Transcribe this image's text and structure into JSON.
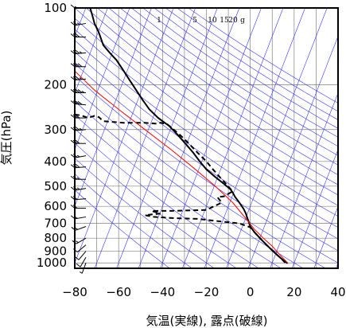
{
  "chart_data": {
    "type": "line",
    "title": "",
    "xlabel": "気温(実線), 露点(破線)",
    "ylabel": "気圧(hPa)",
    "xlim": [
      -80,
      40
    ],
    "ylim": [
      1050,
      100
    ],
    "y_scale": "log",
    "x_ticks": [
      -80,
      -60,
      -40,
      -20,
      0,
      20,
      40
    ],
    "y_ticks": [
      100,
      200,
      300,
      400,
      500,
      600,
      700,
      800,
      900,
      1000
    ],
    "x_tick_labels": [
      "−80",
      "−60",
      "−40",
      "−20",
      "0",
      "20",
      "40"
    ],
    "y_tick_labels": [
      "100",
      "200",
      "300",
      "400",
      "500",
      "600",
      "700",
      "800",
      "900",
      "1000"
    ],
    "mixing_ratio_labels": [
      "1",
      "5",
      "10",
      "15",
      "20",
      "g"
    ],
    "grid": true,
    "series": [
      {
        "role": "temperature",
        "style": "solid",
        "color": "#000000",
        "points": [
          [
            -73,
            100
          ],
          [
            -72,
            107
          ],
          [
            -71,
            115
          ],
          [
            -69,
            125
          ],
          [
            -67,
            140
          ],
          [
            -64,
            150
          ],
          [
            -61,
            160
          ],
          [
            -58,
            175
          ],
          [
            -55,
            192
          ],
          [
            -52,
            210
          ],
          [
            -49,
            230
          ],
          [
            -46,
            250
          ],
          [
            -42,
            270
          ],
          [
            -39,
            282
          ],
          [
            -37,
            290
          ],
          [
            -33,
            315
          ],
          [
            -29,
            345
          ],
          [
            -26,
            370
          ],
          [
            -23,
            400
          ],
          [
            -20,
            430
          ],
          [
            -16,
            460
          ],
          [
            -12,
            490
          ],
          [
            -9,
            515
          ],
          [
            -8,
            530
          ],
          [
            -7,
            550
          ],
          [
            -5,
            580
          ],
          [
            -3,
            615
          ],
          [
            -2,
            640
          ],
          [
            -1,
            680
          ],
          [
            0,
            720
          ],
          [
            2,
            760
          ],
          [
            5,
            810
          ],
          [
            8,
            860
          ],
          [
            11,
            910
          ],
          [
            14,
            960
          ],
          [
            17,
            1005
          ]
        ]
      },
      {
        "role": "dewpoint",
        "style": "dashed",
        "color": "#000000",
        "points": [
          [
            -80,
            262
          ],
          [
            -77,
            264
          ],
          [
            -74,
            270
          ],
          [
            -71,
            265
          ],
          [
            -69,
            268
          ],
          [
            -67,
            278
          ],
          [
            -58,
            282
          ],
          [
            -48,
            282
          ],
          [
            -42,
            285
          ],
          [
            -41,
            282
          ],
          [
            -38,
            285
          ],
          [
            -32,
            315
          ],
          [
            -28,
            340
          ],
          [
            -24,
            370
          ],
          [
            -20,
            400
          ],
          [
            -17,
            430
          ],
          [
            -14,
            460
          ],
          [
            -11,
            490
          ],
          [
            -8,
            525
          ],
          [
            -9,
            530
          ],
          [
            -12,
            548
          ],
          [
            -15,
            552
          ],
          [
            -13,
            580
          ],
          [
            -20,
            620
          ],
          [
            -36,
            625
          ],
          [
            -45,
            625
          ],
          [
            -41,
            640
          ],
          [
            -48,
            650
          ],
          [
            -44,
            660
          ],
          [
            -34,
            668
          ],
          [
            -24,
            672
          ],
          [
            -12,
            690
          ],
          [
            -5,
            700
          ],
          [
            -3,
            710
          ],
          [
            0,
            725
          ],
          [
            2,
            760
          ],
          [
            5,
            810
          ],
          [
            8,
            860
          ],
          [
            11,
            910
          ],
          [
            14,
            960
          ],
          [
            16,
            1000
          ],
          [
            17,
            1012
          ]
        ]
      },
      {
        "role": "parcel",
        "style": "solid",
        "color": "#ff0000",
        "points": [
          [
            -82,
            170
          ],
          [
            -71,
            210
          ],
          [
            -60,
            250
          ],
          [
            -48,
            300
          ],
          [
            -36,
            360
          ],
          [
            -25,
            430
          ],
          [
            -16,
            500
          ],
          [
            -8,
            580
          ],
          [
            -2,
            670
          ],
          [
            2,
            740
          ],
          [
            6,
            800
          ],
          [
            10,
            860
          ],
          [
            13,
            920
          ],
          [
            17,
            1000
          ]
        ]
      }
    ],
    "wind_barbs": [
      {
        "p": 100,
        "dir": 270,
        "speed": 15
      },
      {
        "p": 115,
        "dir": 260,
        "speed": 25
      },
      {
        "p": 130,
        "dir": 270,
        "speed": 30
      },
      {
        "p": 150,
        "dir": 265,
        "speed": 35
      },
      {
        "p": 170,
        "dir": 270,
        "speed": 40
      },
      {
        "p": 190,
        "dir": 265,
        "speed": 35
      },
      {
        "p": 215,
        "dir": 270,
        "speed": 45
      },
      {
        "p": 240,
        "dir": 275,
        "speed": 40
      },
      {
        "p": 270,
        "dir": 270,
        "speed": 30
      },
      {
        "p": 300,
        "dir": 265,
        "speed": 35
      },
      {
        "p": 340,
        "dir": 270,
        "speed": 30
      },
      {
        "p": 380,
        "dir": 260,
        "speed": 25
      },
      {
        "p": 420,
        "dir": 265,
        "speed": 30
      },
      {
        "p": 470,
        "dir": 270,
        "speed": 25
      },
      {
        "p": 510,
        "dir": 260,
        "speed": 25
      },
      {
        "p": 560,
        "dir": 265,
        "speed": 20
      },
      {
        "p": 610,
        "dir": 270,
        "speed": 20
      },
      {
        "p": 660,
        "dir": 260,
        "speed": 15
      },
      {
        "p": 720,
        "dir": 250,
        "speed": 15
      },
      {
        "p": 800,
        "dir": 240,
        "speed": 15
      },
      {
        "p": 850,
        "dir": 230,
        "speed": 10
      },
      {
        "p": 900,
        "dir": 220,
        "speed": 10
      },
      {
        "p": 950,
        "dir": 210,
        "speed": 10
      },
      {
        "p": 1000,
        "dir": 200,
        "speed": 5
      }
    ]
  }
}
